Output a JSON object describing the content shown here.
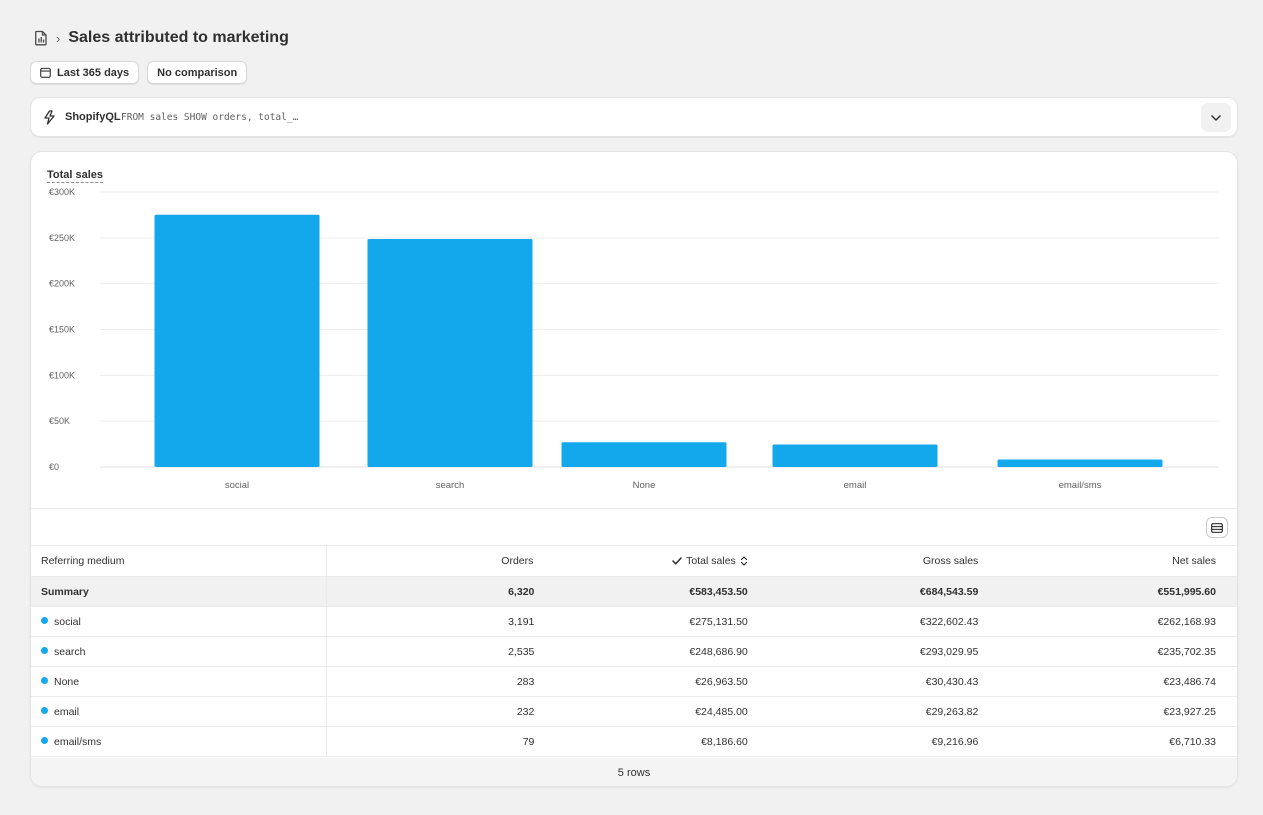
{
  "header": {
    "title": "Sales attributed to marketing",
    "separator": "›"
  },
  "filters": {
    "date_range": "Last 365 days",
    "comparison": "No comparison"
  },
  "query_bar": {
    "label": "ShopifyQL",
    "query": "FROM sales SHOW orders, total_…"
  },
  "colors": {
    "bar": "#13a8ec",
    "background": "#f1f1f1"
  },
  "chart_data": {
    "type": "bar",
    "title": "Total sales",
    "categories": [
      "social",
      "search",
      "None",
      "email",
      "email/sms"
    ],
    "values": [
      275131.5,
      248686.9,
      26963.5,
      24485.0,
      8186.6
    ],
    "ylim": [
      0,
      300000
    ],
    "yticks": [
      0,
      50000,
      100000,
      150000,
      200000,
      250000,
      300000
    ],
    "ytick_labels": [
      "€0",
      "€50K",
      "€100K",
      "€150K",
      "€200K",
      "€250K",
      "€300K"
    ],
    "grid": true,
    "legend": "none"
  },
  "table": {
    "columns": [
      "Referring medium",
      "Orders",
      "Total sales",
      "Gross sales",
      "Net sales"
    ],
    "summary": {
      "label": "Summary",
      "orders": "6,320",
      "total": "€583,453.50",
      "gross": "€684,543.59",
      "net": "€551,995.60"
    },
    "rows": [
      {
        "medium": "social",
        "orders": "3,191",
        "total": "€275,131.50",
        "gross": "€322,602.43",
        "net": "€262,168.93"
      },
      {
        "medium": "search",
        "orders": "2,535",
        "total": "€248,686.90",
        "gross": "€293,029.95",
        "net": "€235,702.35"
      },
      {
        "medium": "None",
        "orders": "283",
        "total": "€26,963.50",
        "gross": "€30,430.43",
        "net": "€23,486.74"
      },
      {
        "medium": "email",
        "orders": "232",
        "total": "€24,485.00",
        "gross": "€29,263.82",
        "net": "€23,927.25"
      },
      {
        "medium": "email/sms",
        "orders": "79",
        "total": "€8,186.60",
        "gross": "€9,216.96",
        "net": "€6,710.33"
      }
    ],
    "footer": "5 rows"
  }
}
